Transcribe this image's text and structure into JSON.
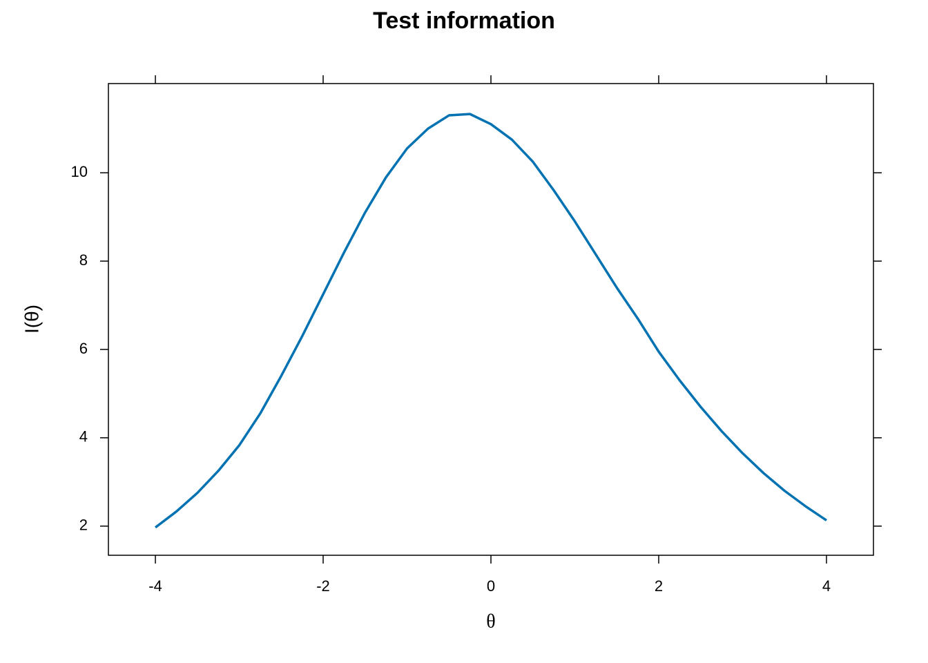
{
  "chart_data": {
    "type": "line",
    "title": "Test information",
    "x_label": "θ",
    "y_label": "I(θ)",
    "x": [
      -4,
      -3.75,
      -3.5,
      -3.25,
      -3,
      -2.75,
      -2.5,
      -2.25,
      -2,
      -1.75,
      -1.5,
      -1.25,
      -1,
      -0.75,
      -0.5,
      -0.25,
      0,
      0.25,
      0.5,
      0.75,
      1,
      1.25,
      1.5,
      1.75,
      2,
      2.25,
      2.5,
      2.75,
      3,
      3.25,
      3.5,
      3.75,
      4
    ],
    "series": [
      {
        "color": "#0072b2",
        "values": [
          1.97,
          2.33,
          2.75,
          3.25,
          3.83,
          4.55,
          5.4,
          6.3,
          7.25,
          8.2,
          9.1,
          9.9,
          10.55,
          11.0,
          11.3,
          11.33,
          11.1,
          10.75,
          10.25,
          9.6,
          8.9,
          8.15,
          7.4,
          6.7,
          5.95,
          5.3,
          4.7,
          4.15,
          3.65,
          3.2,
          2.8,
          2.45,
          2.13
        ]
      }
    ],
    "xlim": [
      -4.56,
      4.56
    ],
    "ylim": [
      1.34,
      12.02
    ],
    "xticks": [
      -4,
      -2,
      0,
      2,
      4
    ],
    "yticks": [
      2,
      4,
      6,
      8,
      10
    ]
  }
}
